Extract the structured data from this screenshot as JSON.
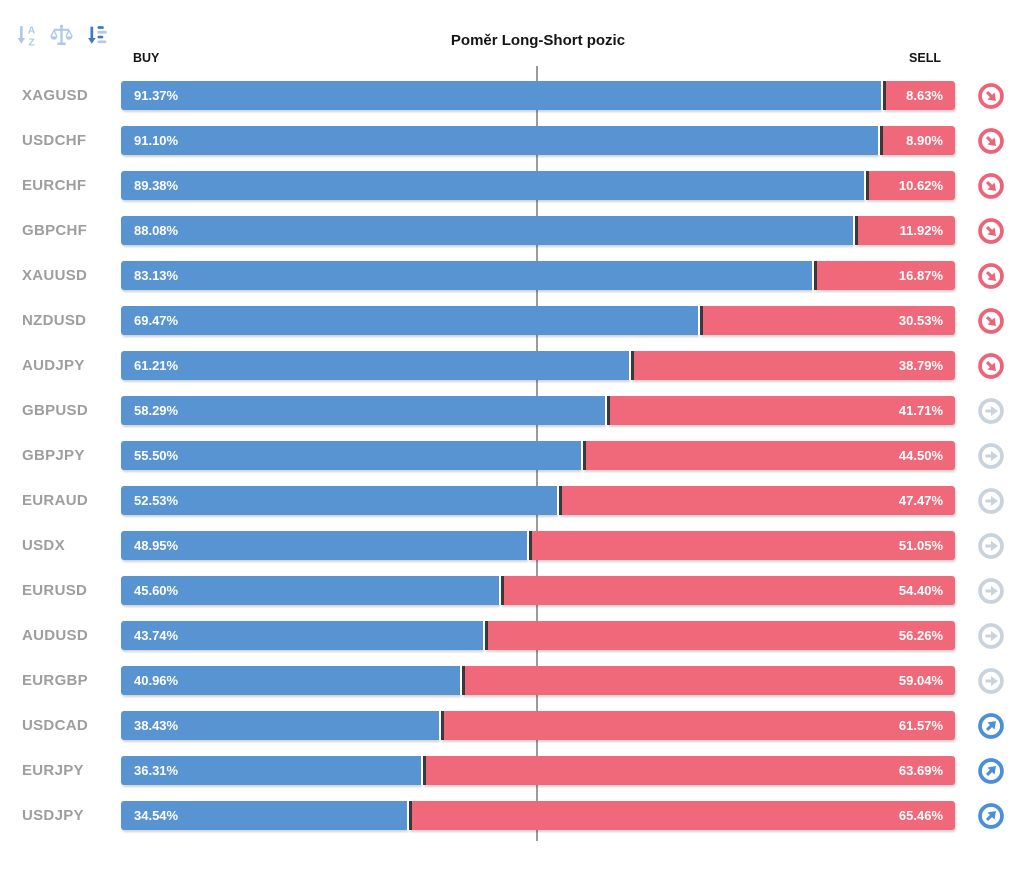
{
  "header": {
    "title": "Poměr Long-Short pozic",
    "buy_label": "BUY",
    "sell_label": "SELL"
  },
  "toolbar": {
    "icons": [
      {
        "name": "sort-alphabetical",
        "active": false
      },
      {
        "name": "balance-scale",
        "active": false
      },
      {
        "name": "sort-by-amount",
        "active": true
      }
    ]
  },
  "rows": [
    {
      "pair": "XAGUSD",
      "buy_pct": 91.37,
      "sell_pct": 8.63,
      "buy_label": "91.37%",
      "sell_label": "8.63%",
      "signal": "down"
    },
    {
      "pair": "USDCHF",
      "buy_pct": 91.1,
      "sell_pct": 8.9,
      "buy_label": "91.10%",
      "sell_label": "8.90%",
      "signal": "down"
    },
    {
      "pair": "EURCHF",
      "buy_pct": 89.38,
      "sell_pct": 10.62,
      "buy_label": "89.38%",
      "sell_label": "10.62%",
      "signal": "down"
    },
    {
      "pair": "GBPCHF",
      "buy_pct": 88.08,
      "sell_pct": 11.92,
      "buy_label": "88.08%",
      "sell_label": "11.92%",
      "signal": "down"
    },
    {
      "pair": "XAUUSD",
      "buy_pct": 83.13,
      "sell_pct": 16.87,
      "buy_label": "83.13%",
      "sell_label": "16.87%",
      "signal": "down"
    },
    {
      "pair": "NZDUSD",
      "buy_pct": 69.47,
      "sell_pct": 30.53,
      "buy_label": "69.47%",
      "sell_label": "30.53%",
      "signal": "down"
    },
    {
      "pair": "AUDJPY",
      "buy_pct": 61.21,
      "sell_pct": 38.79,
      "buy_label": "61.21%",
      "sell_label": "38.79%",
      "signal": "down"
    },
    {
      "pair": "GBPUSD",
      "buy_pct": 58.29,
      "sell_pct": 41.71,
      "buy_label": "58.29%",
      "sell_label": "41.71%",
      "signal": "neutral"
    },
    {
      "pair": "GBPJPY",
      "buy_pct": 55.5,
      "sell_pct": 44.5,
      "buy_label": "55.50%",
      "sell_label": "44.50%",
      "signal": "neutral"
    },
    {
      "pair": "EURAUD",
      "buy_pct": 52.53,
      "sell_pct": 47.47,
      "buy_label": "52.53%",
      "sell_label": "47.47%",
      "signal": "neutral"
    },
    {
      "pair": "USDX",
      "buy_pct": 48.95,
      "sell_pct": 51.05,
      "buy_label": "48.95%",
      "sell_label": "51.05%",
      "signal": "neutral"
    },
    {
      "pair": "EURUSD",
      "buy_pct": 45.6,
      "sell_pct": 54.4,
      "buy_label": "45.60%",
      "sell_label": "54.40%",
      "signal": "neutral"
    },
    {
      "pair": "AUDUSD",
      "buy_pct": 43.74,
      "sell_pct": 56.26,
      "buy_label": "43.74%",
      "sell_label": "56.26%",
      "signal": "neutral"
    },
    {
      "pair": "EURGBP",
      "buy_pct": 40.96,
      "sell_pct": 59.04,
      "buy_label": "40.96%",
      "sell_label": "59.04%",
      "signal": "neutral"
    },
    {
      "pair": "USDCAD",
      "buy_pct": 38.43,
      "sell_pct": 61.57,
      "buy_label": "38.43%",
      "sell_label": "61.57%",
      "signal": "up"
    },
    {
      "pair": "EURJPY",
      "buy_pct": 36.31,
      "sell_pct": 63.69,
      "buy_label": "36.31%",
      "sell_label": "63.69%",
      "signal": "up"
    },
    {
      "pair": "USDJPY",
      "buy_pct": 34.54,
      "sell_pct": 65.46,
      "buy_label": "34.54%",
      "sell_label": "65.46%",
      "signal": "up"
    }
  ],
  "icon_legend": {
    "down": "red circle with arrow pointing down-right",
    "neutral": "gray circle with arrow pointing right",
    "up": "blue circle with arrow pointing up-right"
  },
  "colors": {
    "buy_bar": "#5893D2",
    "sell_bar": "#F0697B",
    "divider": "#3A3A3E",
    "row_label": "#9E9E9E",
    "center_line": "#9B9B9B",
    "icon_down": "#ED6377",
    "icon_neutral": "#C9D3DD",
    "icon_up": "#4A8FD8",
    "toolbar_inactive": "#AFC9E6",
    "toolbar_active": "#3E78C6"
  },
  "chart_data": {
    "type": "bar",
    "variant": "horizontal-stacked-100pct",
    "title": "Poměr Long-Short pozic",
    "categories": [
      "XAGUSD",
      "USDCHF",
      "EURCHF",
      "GBPCHF",
      "XAUUSD",
      "NZDUSD",
      "AUDJPY",
      "GBPUSD",
      "GBPJPY",
      "EURAUD",
      "USDX",
      "EURUSD",
      "AUDUSD",
      "EURGBP",
      "USDCAD",
      "EURJPY",
      "USDJPY"
    ],
    "series": [
      {
        "name": "BUY",
        "color": "#5893D2",
        "values": [
          91.37,
          91.1,
          89.38,
          88.08,
          83.13,
          69.47,
          61.21,
          58.29,
          55.5,
          52.53,
          48.95,
          45.6,
          43.74,
          40.96,
          38.43,
          36.31,
          34.54
        ]
      },
      {
        "name": "SELL",
        "color": "#F0697B",
        "values": [
          8.63,
          8.9,
          10.62,
          11.92,
          16.87,
          30.53,
          38.79,
          41.71,
          44.5,
          47.47,
          51.05,
          54.4,
          56.26,
          59.04,
          61.57,
          63.69,
          65.46
        ]
      }
    ],
    "xlim": [
      0,
      100
    ],
    "center_reference_line": 50,
    "sort_order": "BUY descending",
    "grid": false,
    "legend_position": "top: BUY left, SELL right"
  }
}
